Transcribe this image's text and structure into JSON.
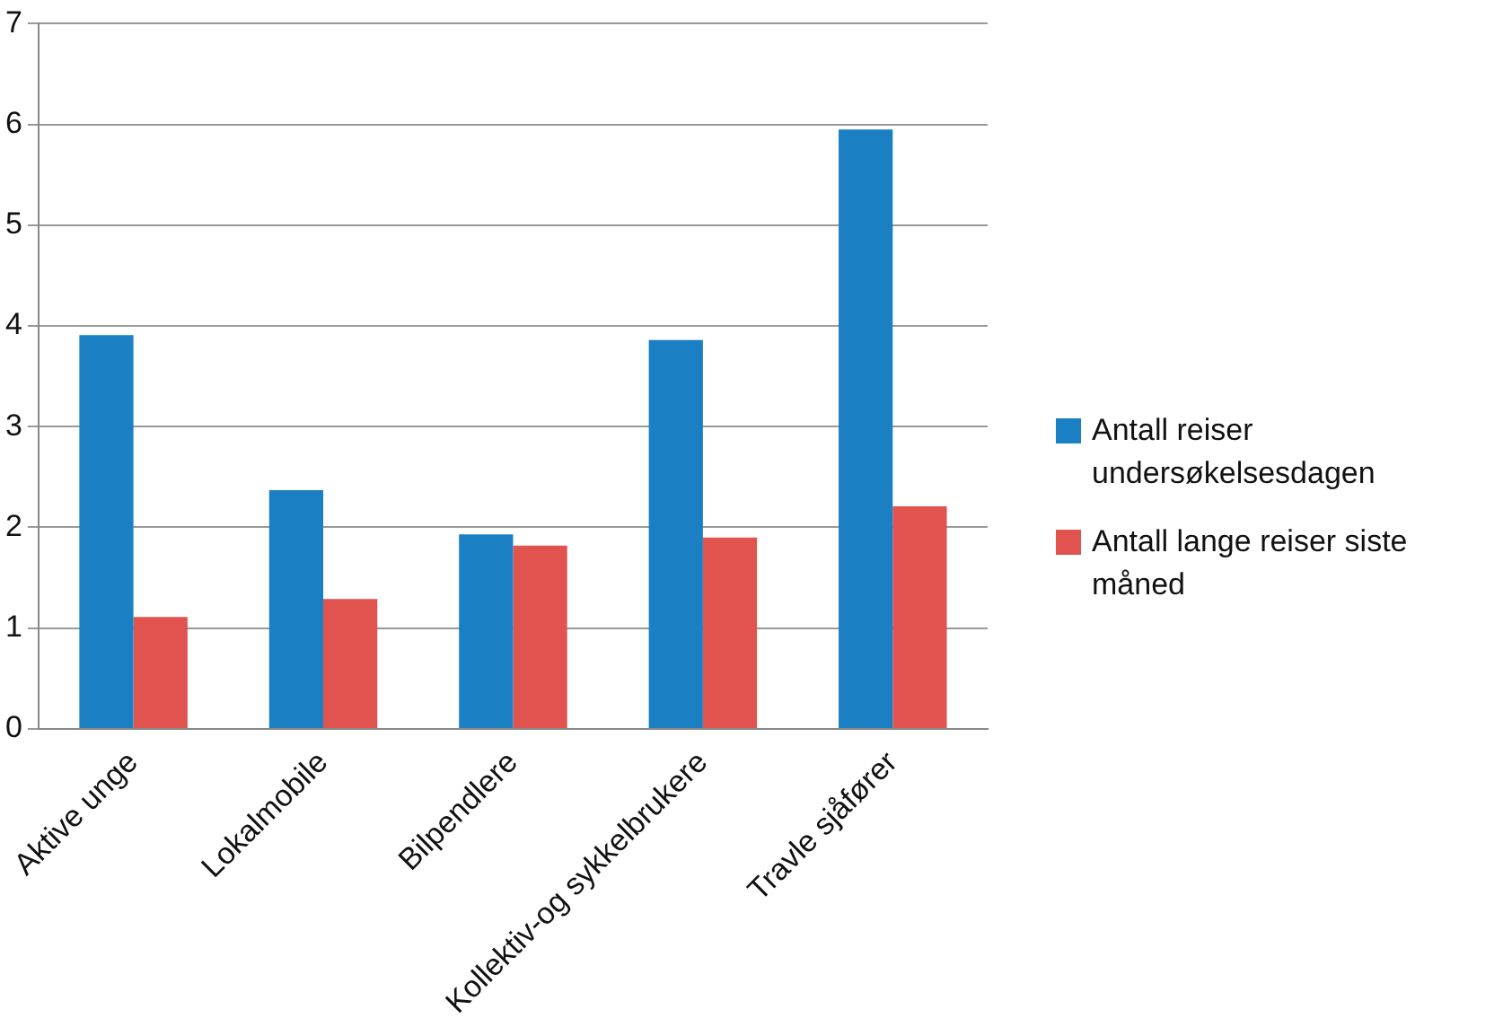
{
  "chart_data": {
    "type": "bar",
    "categories": [
      "Aktive unge",
      "Lokalmobile",
      "Bilpendlere",
      "Kollektiv-og sykkelbrukere",
      "Travle sjåfører"
    ],
    "series": [
      {
        "name": "Antall reiser undersøkelsesdagen",
        "color": "#1b80c3",
        "values": [
          3.91,
          2.37,
          1.93,
          3.86,
          5.95
        ]
      },
      {
        "name": "Antall lange reiser siste måned",
        "color": "#e0534e",
        "values": [
          1.11,
          1.29,
          1.82,
          1.9,
          2.21
        ]
      }
    ],
    "ylim": [
      0,
      7
    ],
    "yticks": [
      0,
      1,
      2,
      3,
      4,
      5,
      6,
      7
    ],
    "grid": "y",
    "legend": "right"
  }
}
